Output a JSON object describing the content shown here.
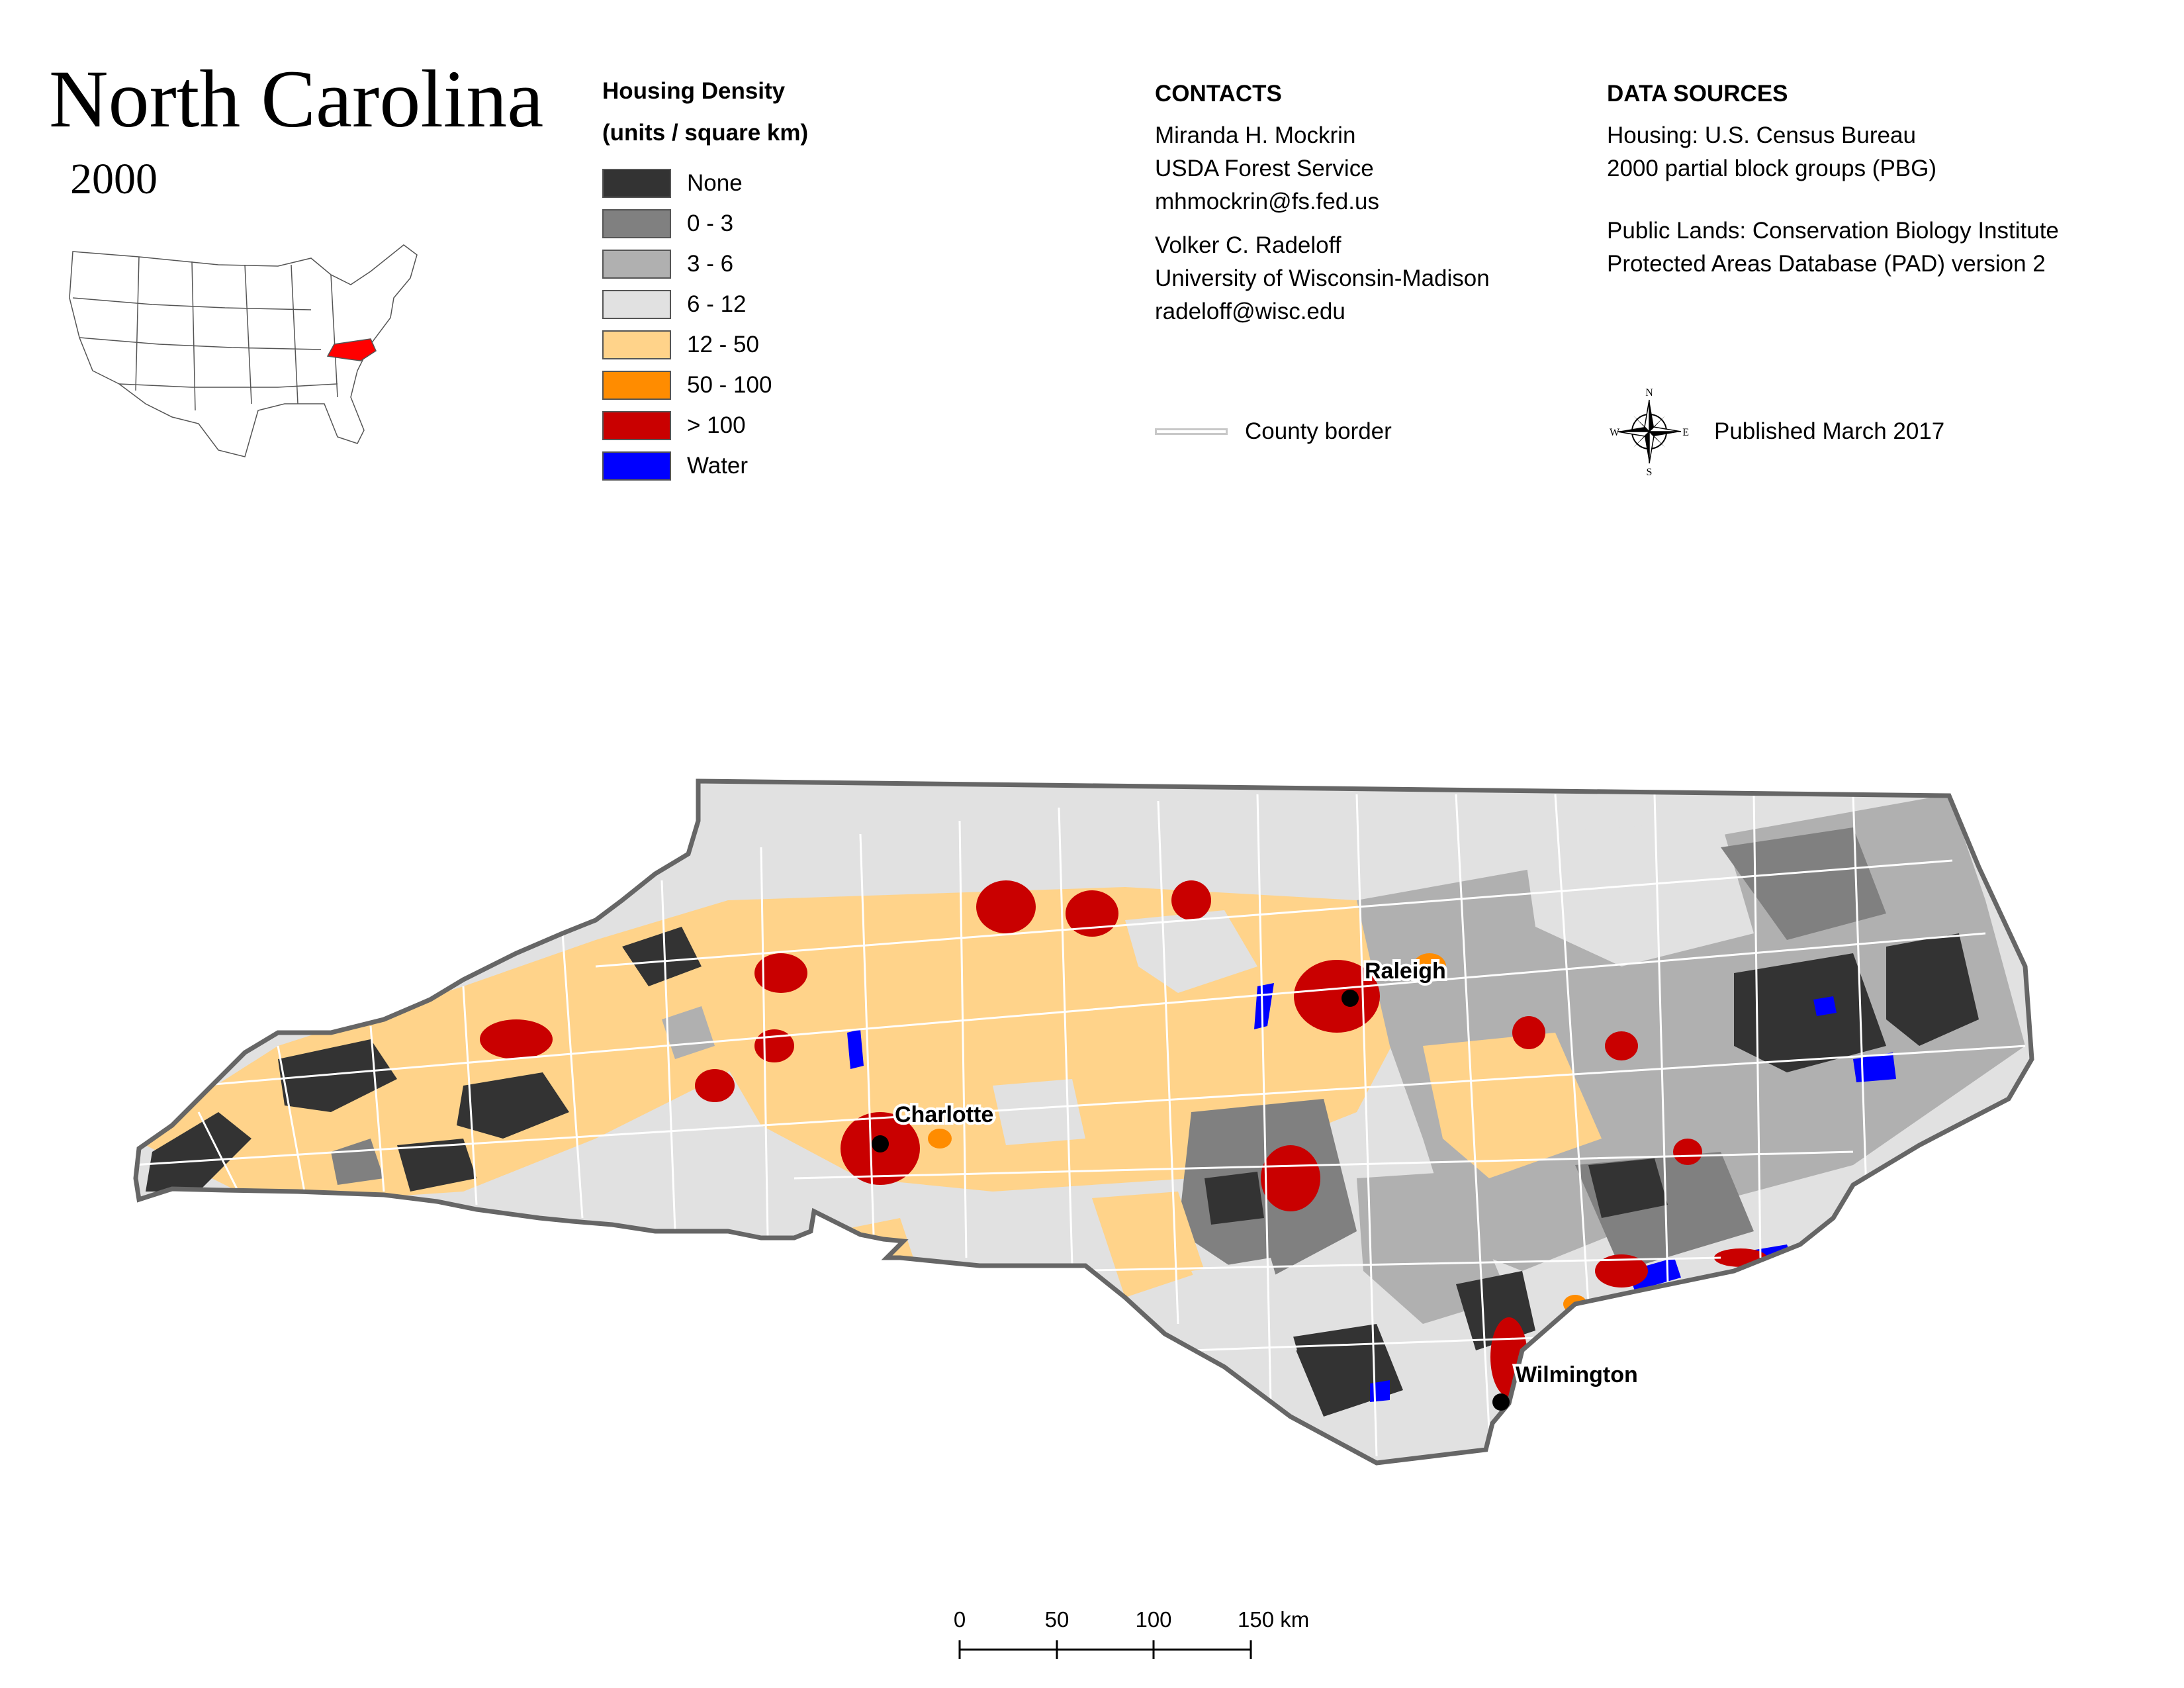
{
  "title": "North Carolina",
  "year": "2000",
  "legend": {
    "heading_line1": "Housing Density",
    "heading_line2": "(units / square km)",
    "items": [
      {
        "label": "None",
        "color": "#333333"
      },
      {
        "label": "0 - 3",
        "color": "#808080"
      },
      {
        "label": "3 - 6",
        "color": "#b0b0b0"
      },
      {
        "label": "6 - 12",
        "color": "#e1e1e1"
      },
      {
        "label": "12 - 50",
        "color": "#ffd38a"
      },
      {
        "label": "50 - 100",
        "color": "#ff8c00"
      },
      {
        "label": "> 100",
        "color": "#c90000"
      },
      {
        "label": "Water",
        "color": "#0000ff"
      }
    ]
  },
  "contacts": {
    "heading": "CONTACTS",
    "person1": {
      "name": "Miranda H. Mockrin",
      "org": "USDA Forest Service",
      "email": "mhmockrin@fs.fed.us"
    },
    "person2": {
      "name": "Volker C. Radeloff",
      "org": "University of Wisconsin-Madison",
      "email": "radeloff@wisc.edu"
    }
  },
  "sources": {
    "heading": "DATA SOURCES",
    "housing_line1": "Housing: U.S. Census Bureau",
    "housing_line2": "2000 partial block groups (PBG)",
    "lands_line1": "Public Lands: Conservation Biology Institute",
    "lands_line2": "Protected Areas Database (PAD) version 2"
  },
  "county_border_label": "County border",
  "published": "Published March 2017",
  "compass": {
    "n": "N",
    "s": "S",
    "e": "E",
    "w": "W"
  },
  "cities": [
    {
      "name": "Raleigh"
    },
    {
      "name": "Charlotte"
    },
    {
      "name": "Wilmington"
    }
  ],
  "scale": {
    "ticks": [
      "0",
      "50",
      "100",
      "150 km"
    ]
  },
  "inset_highlight_color": "#ff0000"
}
